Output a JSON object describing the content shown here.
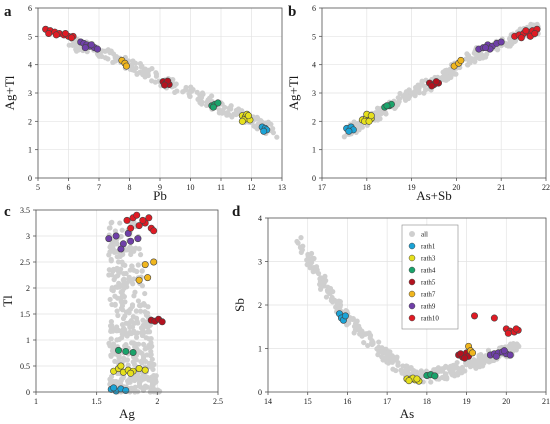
{
  "figure": {
    "palette": {
      "all": "#cfcfcf",
      "rath1": "#1ba3d6",
      "rath3": "#e6e01c",
      "rath4": "#1aa36b",
      "rath5": "#b3121f",
      "rath7": "#f0b61e",
      "rath9": "#6f3fa8",
      "rath10": "#e01b24",
      "outline": "#444444"
    }
  },
  "chart_data": [
    {
      "panel": "a",
      "type": "scatter",
      "xlabel": "Pb",
      "ylabel": "Ag+Tl",
      "xlim": [
        5,
        13
      ],
      "ylim": [
        0,
        6
      ],
      "xticks": [
        5,
        6,
        7,
        8,
        9,
        10,
        11,
        12,
        13
      ],
      "yticks": [
        0,
        1,
        2,
        3,
        4,
        5,
        6
      ],
      "grid": true,
      "background_band": [
        [
          6.0,
          4.75
        ],
        [
          7.0,
          4.5
        ],
        [
          8.0,
          4.0
        ],
        [
          9.0,
          3.5
        ],
        [
          10.0,
          3.0
        ],
        [
          11.0,
          2.5
        ],
        [
          12.0,
          2.05
        ],
        [
          12.8,
          1.6
        ]
      ],
      "series": [
        {
          "name": "rath10",
          "x": [
            5.25,
            5.4,
            5.55,
            5.7,
            5.85,
            6.0,
            6.15,
            5.35,
            5.6,
            5.9,
            6.1
          ],
          "y": [
            5.25,
            5.2,
            5.15,
            5.1,
            5.05,
            5.0,
            5.0,
            5.1,
            5.05,
            5.1,
            4.95
          ]
        },
        {
          "name": "rath9",
          "x": [
            6.4,
            6.5,
            6.6,
            6.7,
            6.85,
            6.95,
            6.55,
            6.75
          ],
          "y": [
            4.8,
            4.75,
            4.7,
            4.65,
            4.6,
            4.55,
            4.6,
            4.7
          ]
        },
        {
          "name": "rath7",
          "x": [
            7.75,
            7.85,
            7.9
          ],
          "y": [
            4.15,
            4.05,
            3.95
          ]
        },
        {
          "name": "rath5",
          "x": [
            9.1,
            9.2,
            9.3,
            9.25,
            9.15
          ],
          "y": [
            3.4,
            3.35,
            3.3,
            3.42,
            3.28
          ]
        },
        {
          "name": "rath4",
          "x": [
            10.7,
            10.8,
            10.9,
            10.75
          ],
          "y": [
            2.55,
            2.6,
            2.65,
            2.5
          ]
        },
        {
          "name": "rath3",
          "x": [
            11.7,
            11.8,
            11.9,
            11.95,
            11.75,
            11.85,
            11.7,
            11.9
          ],
          "y": [
            2.2,
            2.15,
            2.1,
            2.05,
            2.05,
            2.25,
            2.0,
            2.2
          ]
        },
        {
          "name": "rath1",
          "x": [
            12.35,
            12.45,
            12.5,
            12.4
          ],
          "y": [
            1.8,
            1.75,
            1.7,
            1.65
          ]
        }
      ]
    },
    {
      "panel": "b",
      "type": "scatter",
      "xlabel": "As+Sb",
      "ylabel": "Ag+Tl",
      "xlim": [
        17,
        22
      ],
      "ylim": [
        0,
        6
      ],
      "xticks": [
        17,
        18,
        19,
        20,
        21,
        22
      ],
      "yticks": [
        0,
        1,
        2,
        3,
        4,
        5,
        6
      ],
      "grid": true,
      "background_band": [
        [
          17.5,
          1.6
        ],
        [
          18.0,
          2.0
        ],
        [
          18.5,
          2.5
        ],
        [
          19.0,
          3.0
        ],
        [
          19.5,
          3.4
        ],
        [
          20.0,
          3.9
        ],
        [
          20.5,
          4.4
        ],
        [
          21.0,
          4.7
        ],
        [
          21.5,
          5.1
        ],
        [
          21.8,
          5.3
        ]
      ],
      "series": [
        {
          "name": "rath1",
          "x": [
            17.55,
            17.65,
            17.7,
            17.6
          ],
          "y": [
            1.75,
            1.8,
            1.7,
            1.65
          ]
        },
        {
          "name": "rath3",
          "x": [
            17.9,
            18.0,
            18.05,
            18.1,
            17.95,
            18.05,
            18.0,
            18.1
          ],
          "y": [
            2.05,
            2.15,
            2.2,
            2.1,
            2.0,
            2.0,
            2.25,
            2.2
          ]
        },
        {
          "name": "rath4",
          "x": [
            18.4,
            18.5,
            18.55,
            18.45
          ],
          "y": [
            2.5,
            2.55,
            2.6,
            2.55
          ]
        },
        {
          "name": "rath5",
          "x": [
            19.4,
            19.5,
            19.6,
            19.55,
            19.45
          ],
          "y": [
            3.35,
            3.3,
            3.35,
            3.4,
            3.25
          ]
        },
        {
          "name": "rath7",
          "x": [
            19.95,
            20.05,
            20.1
          ],
          "y": [
            3.95,
            4.05,
            4.15
          ]
        },
        {
          "name": "rath9",
          "x": [
            20.5,
            20.6,
            20.7,
            20.8,
            20.9,
            21.0,
            20.75,
            20.65
          ],
          "y": [
            4.55,
            4.6,
            4.7,
            4.65,
            4.75,
            4.8,
            4.55,
            4.6
          ]
        },
        {
          "name": "rath10",
          "x": [
            21.3,
            21.4,
            21.5,
            21.6,
            21.7,
            21.8,
            21.45,
            21.65,
            21.55,
            21.75
          ],
          "y": [
            5.0,
            5.05,
            5.1,
            5.15,
            5.2,
            5.25,
            4.95,
            5.0,
            5.2,
            5.1
          ]
        }
      ]
    },
    {
      "panel": "c",
      "type": "scatter",
      "xlabel": "Ag",
      "ylabel": "Tl",
      "xlim": [
        1,
        2.5
      ],
      "ylim": [
        0,
        3.5
      ],
      "xticks": [
        1,
        1.5,
        2,
        2.5
      ],
      "xtick_labels": [
        "1",
        "1.5",
        "2",
        "2.5"
      ],
      "yticks": [
        0,
        0.5,
        1,
        1.5,
        2,
        2.5,
        3,
        3.5
      ],
      "ytick_labels": [
        "0",
        "0.5",
        "1",
        "1.5",
        "2",
        "2.5",
        "3",
        "3.5"
      ],
      "grid": true,
      "background_region": {
        "x": [
          1.58,
          2.0
        ],
        "y": [
          0.0,
          3.3
        ]
      },
      "series": [
        {
          "name": "rath1",
          "x": [
            1.62,
            1.66,
            1.7,
            1.74,
            1.64
          ],
          "y": [
            0.05,
            0.02,
            0.06,
            0.03,
            0.08
          ]
        },
        {
          "name": "rath3",
          "x": [
            1.64,
            1.68,
            1.72,
            1.76,
            1.8,
            1.85,
            1.9,
            1.7,
            1.78
          ],
          "y": [
            0.4,
            0.45,
            0.38,
            0.42,
            0.4,
            0.45,
            0.42,
            0.5,
            0.36
          ]
        },
        {
          "name": "rath4",
          "x": [
            1.68,
            1.74,
            1.8
          ],
          "y": [
            0.8,
            0.78,
            0.76
          ]
        },
        {
          "name": "rath5",
          "x": [
            1.95,
            1.98,
            2.01,
            2.04
          ],
          "y": [
            1.38,
            1.36,
            1.4,
            1.35
          ]
        },
        {
          "name": "rath7",
          "x": [
            1.85,
            1.92,
            1.9,
            1.97
          ],
          "y": [
            2.15,
            2.2,
            2.45,
            2.5
          ]
        },
        {
          "name": "rath9",
          "x": [
            1.6,
            1.66,
            1.72,
            1.78,
            1.84,
            1.7,
            1.76
          ],
          "y": [
            2.95,
            3.0,
            2.85,
            2.9,
            2.95,
            2.75,
            3.05
          ]
        },
        {
          "name": "rath10",
          "x": [
            1.75,
            1.8,
            1.85,
            1.9,
            1.95,
            1.78,
            1.88,
            1.83,
            1.93,
            1.97
          ],
          "y": [
            3.3,
            3.35,
            3.2,
            3.25,
            3.15,
            3.15,
            3.3,
            3.4,
            3.35,
            3.1
          ]
        }
      ]
    },
    {
      "panel": "d",
      "type": "scatter",
      "xlabel": "As",
      "ylabel": "Sb",
      "xlim": [
        14,
        21
      ],
      "ylim": [
        0,
        4
      ],
      "xticks": [
        14,
        15,
        16,
        17,
        18,
        19,
        20,
        21
      ],
      "yticks": [
        0,
        1,
        2,
        3,
        4
      ],
      "grid": true,
      "background_band": [
        [
          14.8,
          3.45
        ],
        [
          15.2,
          2.8
        ],
        [
          15.6,
          2.2
        ],
        [
          16.0,
          1.7
        ],
        [
          16.5,
          1.25
        ],
        [
          17.0,
          0.8
        ],
        [
          17.5,
          0.45
        ],
        [
          18.0,
          0.35
        ],
        [
          18.5,
          0.45
        ],
        [
          19.0,
          0.6
        ],
        [
          19.5,
          0.8
        ],
        [
          20.0,
          0.95
        ],
        [
          20.3,
          1.0
        ]
      ],
      "legend": {
        "placement": "top-center",
        "entries": [
          "all",
          "rath1",
          "rath3",
          "rath4",
          "rath5",
          "rath7",
          "rath9",
          "rath10"
        ]
      },
      "series": [
        {
          "name": "rath1",
          "x": [
            15.8,
            15.85,
            15.9,
            15.95
          ],
          "y": [
            1.8,
            1.7,
            1.65,
            1.75
          ]
        },
        {
          "name": "rath3",
          "x": [
            17.5,
            17.6,
            17.7,
            17.8,
            17.65,
            17.75,
            17.55
          ],
          "y": [
            0.3,
            0.3,
            0.28,
            0.25,
            0.32,
            0.3,
            0.26
          ]
        },
        {
          "name": "rath4",
          "x": [
            18.0,
            18.1,
            18.2
          ],
          "y": [
            0.38,
            0.4,
            0.37
          ]
        },
        {
          "name": "rath5",
          "x": [
            18.8,
            18.9,
            19.0,
            19.05,
            18.85,
            18.95
          ],
          "y": [
            0.85,
            0.8,
            0.9,
            0.82,
            0.88,
            0.78
          ]
        },
        {
          "name": "rath7",
          "x": [
            19.05,
            19.1,
            19.15
          ],
          "y": [
            1.05,
            0.95,
            0.9
          ]
        },
        {
          "name": "rath9",
          "x": [
            19.6,
            19.7,
            19.8,
            19.9,
            20.0,
            20.1,
            19.75,
            19.95
          ],
          "y": [
            0.85,
            0.88,
            0.9,
            0.92,
            0.88,
            0.85,
            0.82,
            0.95
          ]
        },
        {
          "name": "rath10",
          "x": [
            19.2,
            19.7,
            20.0,
            20.1,
            20.2,
            20.3,
            20.05,
            20.25
          ],
          "y": [
            1.75,
            1.7,
            1.45,
            1.4,
            1.38,
            1.42,
            1.35,
            1.45
          ]
        }
      ]
    }
  ]
}
